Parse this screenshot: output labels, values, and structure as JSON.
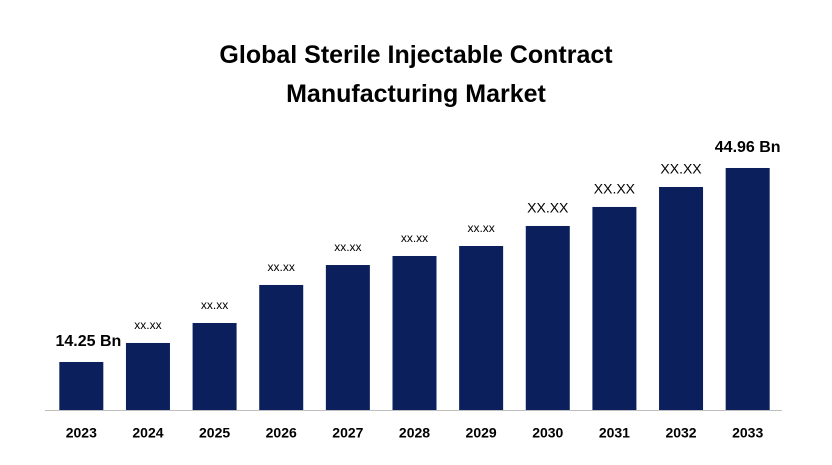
{
  "chart_data": {
    "type": "bar",
    "title": "Global Sterile Injectable Contract Manufacturing Market",
    "categories": [
      "2023",
      "2024",
      "2025",
      "2026",
      "2027",
      "2028",
      "2029",
      "2030",
      "2031",
      "2032",
      "2033"
    ],
    "values": [
      14.25,
      17.26,
      20.42,
      26.44,
      29.6,
      31.03,
      32.61,
      35.78,
      38.79,
      41.95,
      44.96
    ],
    "value_labels": [
      "14.25 Bn",
      "xx.xx",
      "xx.xx",
      "xx.xx",
      "xx.xx",
      "xx.xx",
      "xx.xx",
      "XX.XX",
      "XX.XX",
      "XX.XX",
      "44.96 Bn"
    ],
    "color": "#0b1f5c",
    "ylim": [
      6.65,
      49.39
    ]
  }
}
